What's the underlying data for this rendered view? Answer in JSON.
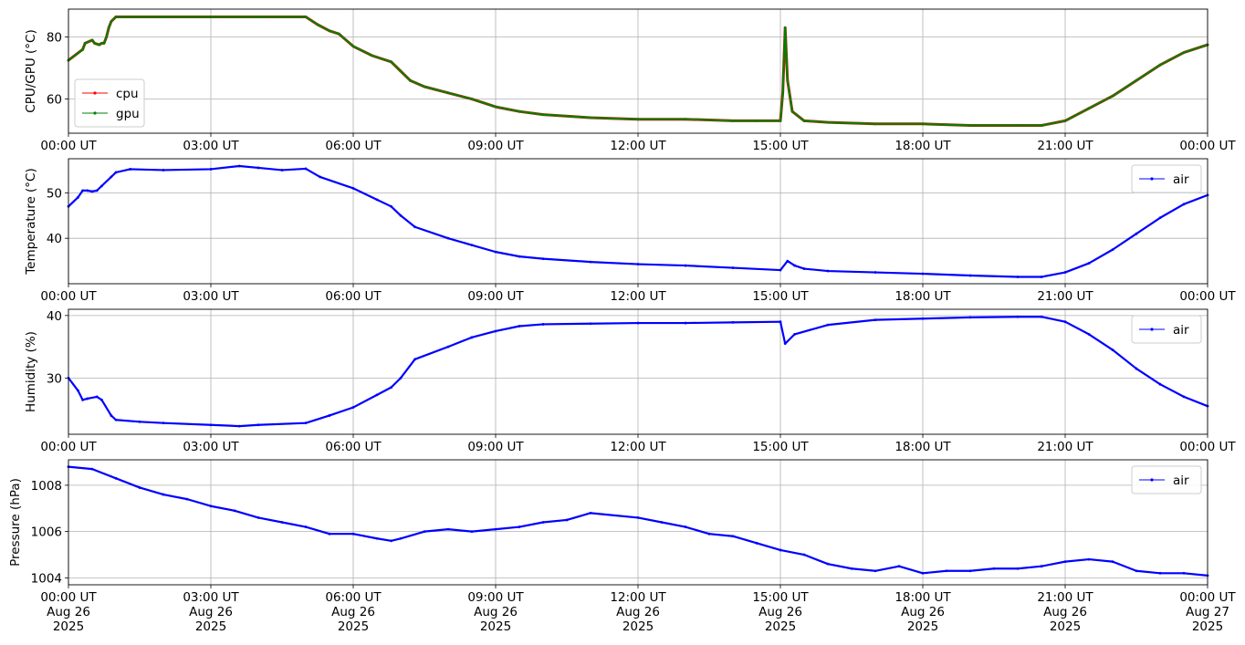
{
  "chart_data": [
    {
      "type": "line",
      "ylabel": "CPU/GPU (°C)",
      "ylim": [
        49,
        89
      ],
      "yticks": [
        60,
        80
      ],
      "xticks": [
        "00:00 UT",
        "03:00 UT",
        "06:00 UT",
        "09:00 UT",
        "12:00 UT",
        "15:00 UT",
        "18:00 UT",
        "21:00 UT",
        "00:00 UT"
      ],
      "xlim_hours": [
        0,
        24
      ],
      "grid": true,
      "legend": "lower-left",
      "series": [
        {
          "name": "cpu",
          "color": "#ff0000",
          "points": [
            [
              0,
              72.5
            ],
            [
              0.3,
              76
            ],
            [
              0.35,
              78
            ],
            [
              0.5,
              79
            ],
            [
              0.55,
              78
            ],
            [
              0.65,
              77.5
            ],
            [
              0.7,
              78
            ],
            [
              0.75,
              78
            ],
            [
              0.8,
              80
            ],
            [
              0.85,
              83
            ],
            [
              0.9,
              85
            ],
            [
              1,
              86.5
            ],
            [
              2,
              86.5
            ],
            [
              3,
              86.5
            ],
            [
              4,
              86.5
            ],
            [
              5,
              86.5
            ],
            [
              5.25,
              84
            ],
            [
              5.5,
              82
            ],
            [
              5.7,
              81
            ],
            [
              6,
              77
            ],
            [
              6.4,
              74
            ],
            [
              6.8,
              72
            ],
            [
              7,
              69
            ],
            [
              7.2,
              66
            ],
            [
              7.5,
              64
            ],
            [
              8,
              62
            ],
            [
              8.5,
              60
            ],
            [
              9,
              57.5
            ],
            [
              9.5,
              56
            ],
            [
              10,
              55
            ],
            [
              11,
              54
            ],
            [
              12,
              53.5
            ],
            [
              13,
              53.5
            ],
            [
              14,
              53
            ],
            [
              14.5,
              53
            ],
            [
              15,
              53
            ],
            [
              15.05,
              62
            ],
            [
              15.1,
              83
            ],
            [
              15.15,
              66
            ],
            [
              15.25,
              56
            ],
            [
              15.5,
              53
            ],
            [
              16,
              52.5
            ],
            [
              17,
              52
            ],
            [
              18,
              52
            ],
            [
              19,
              51.5
            ],
            [
              20,
              51.5
            ],
            [
              20.5,
              51.5
            ],
            [
              21,
              53
            ],
            [
              21.5,
              57
            ],
            [
              22,
              61
            ],
            [
              22.5,
              66
            ],
            [
              23,
              71
            ],
            [
              23.5,
              75
            ],
            [
              24,
              77.5
            ]
          ]
        },
        {
          "name": "gpu",
          "color": "#008000",
          "points": [
            [
              0,
              72.5
            ],
            [
              0.3,
              76
            ],
            [
              0.35,
              78
            ],
            [
              0.5,
              79
            ],
            [
              0.55,
              78
            ],
            [
              0.65,
              77.5
            ],
            [
              0.7,
              78
            ],
            [
              0.75,
              78
            ],
            [
              0.8,
              80
            ],
            [
              0.85,
              83
            ],
            [
              0.9,
              85
            ],
            [
              1,
              86.5
            ],
            [
              2,
              86.5
            ],
            [
              3,
              86.5
            ],
            [
              4,
              86.5
            ],
            [
              5,
              86.5
            ],
            [
              5.25,
              84
            ],
            [
              5.5,
              82
            ],
            [
              5.7,
              81
            ],
            [
              6,
              77
            ],
            [
              6.4,
              74
            ],
            [
              6.8,
              72
            ],
            [
              7,
              69
            ],
            [
              7.2,
              66
            ],
            [
              7.5,
              64
            ],
            [
              8,
              62
            ],
            [
              8.5,
              60
            ],
            [
              9,
              57.5
            ],
            [
              9.5,
              56
            ],
            [
              10,
              55
            ],
            [
              11,
              54
            ],
            [
              12,
              53.5
            ],
            [
              13,
              53.5
            ],
            [
              14,
              53
            ],
            [
              14.5,
              53
            ],
            [
              15,
              53
            ],
            [
              15.05,
              62
            ],
            [
              15.1,
              83
            ],
            [
              15.15,
              66
            ],
            [
              15.25,
              56
            ],
            [
              15.5,
              53
            ],
            [
              16,
              52.5
            ],
            [
              17,
              52
            ],
            [
              18,
              52
            ],
            [
              19,
              51.5
            ],
            [
              20,
              51.5
            ],
            [
              20.5,
              51.5
            ],
            [
              21,
              53
            ],
            [
              21.5,
              57
            ],
            [
              22,
              61
            ],
            [
              22.5,
              66
            ],
            [
              23,
              71
            ],
            [
              23.5,
              75
            ],
            [
              24,
              77.5
            ]
          ]
        }
      ]
    },
    {
      "type": "line",
      "ylabel": "Temperature (°C)",
      "ylim": [
        30,
        57.5
      ],
      "yticks": [
        40,
        50
      ],
      "xticks": [
        "00:00 UT",
        "03:00 UT",
        "06:00 UT",
        "09:00 UT",
        "12:00 UT",
        "15:00 UT",
        "18:00 UT",
        "21:00 UT",
        "00:00 UT"
      ],
      "xlim_hours": [
        0,
        24
      ],
      "grid": true,
      "legend": "upper-right",
      "series": [
        {
          "name": "air",
          "color": "#0000ff",
          "points": [
            [
              0,
              47
            ],
            [
              0.2,
              49
            ],
            [
              0.3,
              50.5
            ],
            [
              0.4,
              50.5
            ],
            [
              0.5,
              50.3
            ],
            [
              0.6,
              50.5
            ],
            [
              0.7,
              51.5
            ],
            [
              0.9,
              53.5
            ],
            [
              1,
              54.5
            ],
            [
              1.3,
              55.2
            ],
            [
              2,
              55
            ],
            [
              3,
              55.2
            ],
            [
              3.6,
              55.9
            ],
            [
              4,
              55.5
            ],
            [
              4.5,
              55
            ],
            [
              5,
              55.3
            ],
            [
              5.3,
              53.5
            ],
            [
              6,
              51
            ],
            [
              6.5,
              48.5
            ],
            [
              6.8,
              47
            ],
            [
              7,
              45
            ],
            [
              7.3,
              42.5
            ],
            [
              8,
              40
            ],
            [
              8.5,
              38.5
            ],
            [
              9,
              37
            ],
            [
              9.5,
              36
            ],
            [
              10,
              35.5
            ],
            [
              11,
              34.8
            ],
            [
              12,
              34.3
            ],
            [
              13,
              34
            ],
            [
              14,
              33.5
            ],
            [
              15,
              33
            ],
            [
              15.15,
              35
            ],
            [
              15.3,
              34
            ],
            [
              15.5,
              33.3
            ],
            [
              16,
              32.8
            ],
            [
              17,
              32.5
            ],
            [
              18,
              32.2
            ],
            [
              19,
              31.8
            ],
            [
              20,
              31.5
            ],
            [
              20.5,
              31.5
            ],
            [
              21,
              32.5
            ],
            [
              21.5,
              34.5
            ],
            [
              22,
              37.5
            ],
            [
              22.5,
              41
            ],
            [
              23,
              44.5
            ],
            [
              23.5,
              47.5
            ],
            [
              24,
              49.5
            ]
          ]
        }
      ]
    },
    {
      "type": "line",
      "ylabel": "Humidity (%)",
      "ylim": [
        21,
        41
      ],
      "yticks": [
        30,
        40
      ],
      "xticks": [
        "00:00 UT",
        "03:00 UT",
        "06:00 UT",
        "09:00 UT",
        "12:00 UT",
        "15:00 UT",
        "18:00 UT",
        "21:00 UT",
        "00:00 UT"
      ],
      "xlim_hours": [
        0,
        24
      ],
      "grid": true,
      "legend": "upper-right",
      "series": [
        {
          "name": "air",
          "color": "#0000ff",
          "points": [
            [
              0,
              30
            ],
            [
              0.2,
              28
            ],
            [
              0.3,
              26.5
            ],
            [
              0.4,
              26.7
            ],
            [
              0.6,
              27
            ],
            [
              0.7,
              26.5
            ],
            [
              0.9,
              24
            ],
            [
              1,
              23.3
            ],
            [
              1.5,
              23
            ],
            [
              2,
              22.8
            ],
            [
              3,
              22.5
            ],
            [
              3.6,
              22.3
            ],
            [
              4,
              22.5
            ],
            [
              5,
              22.8
            ],
            [
              5.5,
              24
            ],
            [
              6,
              25.3
            ],
            [
              6.5,
              27.3
            ],
            [
              6.8,
              28.5
            ],
            [
              7,
              30
            ],
            [
              7.3,
              33
            ],
            [
              8,
              35
            ],
            [
              8.5,
              36.5
            ],
            [
              9,
              37.5
            ],
            [
              9.5,
              38.3
            ],
            [
              10,
              38.6
            ],
            [
              11,
              38.7
            ],
            [
              12,
              38.8
            ],
            [
              13,
              38.8
            ],
            [
              14,
              38.9
            ],
            [
              15,
              39
            ],
            [
              15.1,
              35.5
            ],
            [
              15.3,
              37
            ],
            [
              16,
              38.5
            ],
            [
              17,
              39.3
            ],
            [
              18,
              39.5
            ],
            [
              19,
              39.7
            ],
            [
              20,
              39.8
            ],
            [
              20.5,
              39.8
            ],
            [
              21,
              39
            ],
            [
              21.5,
              37
            ],
            [
              22,
              34.5
            ],
            [
              22.5,
              31.5
            ],
            [
              23,
              29
            ],
            [
              23.5,
              27
            ],
            [
              24,
              25.5
            ]
          ]
        }
      ]
    },
    {
      "type": "line",
      "ylabel": "Pressure (hPa)",
      "ylim": [
        1003.7,
        1009.1
      ],
      "yticks": [
        1004,
        1006,
        1008
      ],
      "xticks": [
        "00:00 UT\nAug 26\n2025",
        "03:00 UT\nAug 26\n2025",
        "06:00 UT\nAug 26\n2025",
        "09:00 UT\nAug 26\n2025",
        "12:00 UT\nAug 26\n2025",
        "15:00 UT\nAug 26\n2025",
        "18:00 UT\nAug 26\n2025",
        "21:00 UT\nAug 26\n2025",
        "00:00 UT\nAug 27\n2025"
      ],
      "xlim_hours": [
        0,
        24
      ],
      "grid": true,
      "legend": "upper-right",
      "series": [
        {
          "name": "air",
          "color": "#0000ff",
          "points": [
            [
              0,
              1008.8
            ],
            [
              0.5,
              1008.7
            ],
            [
              1,
              1008.3
            ],
            [
              1.5,
              1007.9
            ],
            [
              2,
              1007.6
            ],
            [
              2.5,
              1007.4
            ],
            [
              3,
              1007.1
            ],
            [
              3.5,
              1006.9
            ],
            [
              4,
              1006.6
            ],
            [
              4.5,
              1006.4
            ],
            [
              5,
              1006.2
            ],
            [
              5.5,
              1005.9
            ],
            [
              6,
              1005.9
            ],
            [
              6.5,
              1005.7
            ],
            [
              6.8,
              1005.6
            ],
            [
              7,
              1005.7
            ],
            [
              7.5,
              1006
            ],
            [
              8,
              1006.1
            ],
            [
              8.5,
              1006
            ],
            [
              9,
              1006.1
            ],
            [
              9.5,
              1006.2
            ],
            [
              10,
              1006.4
            ],
            [
              10.5,
              1006.5
            ],
            [
              11,
              1006.8
            ],
            [
              12,
              1006.6
            ],
            [
              12.5,
              1006.4
            ],
            [
              13,
              1006.2
            ],
            [
              13.5,
              1005.9
            ],
            [
              14,
              1005.8
            ],
            [
              14.5,
              1005.5
            ],
            [
              15,
              1005.2
            ],
            [
              15.5,
              1005
            ],
            [
              16,
              1004.6
            ],
            [
              16.5,
              1004.4
            ],
            [
              17,
              1004.3
            ],
            [
              17.5,
              1004.5
            ],
            [
              18,
              1004.2
            ],
            [
              18.5,
              1004.3
            ],
            [
              19,
              1004.3
            ],
            [
              19.5,
              1004.4
            ],
            [
              20,
              1004.4
            ],
            [
              20.5,
              1004.5
            ],
            [
              21,
              1004.7
            ],
            [
              21.5,
              1004.8
            ],
            [
              22,
              1004.7
            ],
            [
              22.5,
              1004.3
            ],
            [
              23,
              1004.2
            ],
            [
              23.5,
              1004.2
            ],
            [
              24,
              1004.1
            ]
          ]
        }
      ]
    }
  ]
}
